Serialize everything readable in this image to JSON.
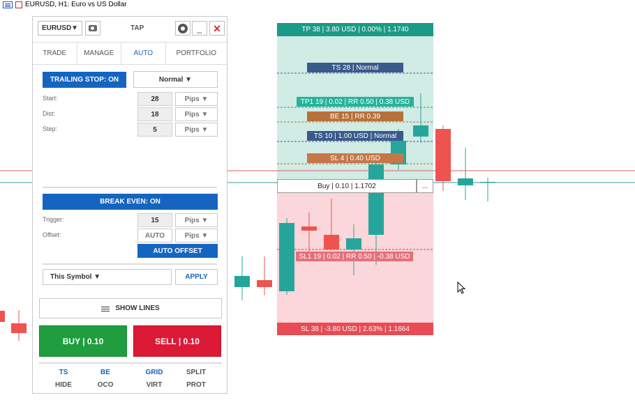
{
  "chart": {
    "title": "EURUSD, H1:  Euro vs US Dollar",
    "colors": {
      "bull": "#26a69a",
      "bear": "#ef5350",
      "tp_zone": "#d1ebe5",
      "sl_zone": "#fbd6da",
      "tp_bar": "#1a9b87",
      "sl_bar": "#e84b54"
    }
  },
  "panel": {
    "symbol_button": "EURUSD▼",
    "title": "TAP",
    "minimize_label": "_",
    "close_label": "✕",
    "tabs": [
      "TRADE",
      "MANAGE",
      "AUTO",
      "PORTFOLIO"
    ],
    "active_tab": "AUTO",
    "trailing_stop": {
      "toggle_label": "TRAILING STOP: ON",
      "mode_label": "Normal ▼",
      "start_label": "Start:",
      "start_value": "28",
      "dist_label": "Dist:",
      "dist_value": "18",
      "step_label": "Step:",
      "step_value": "5",
      "unit_label": "Pips ▼"
    },
    "break_even": {
      "toggle_label": "BREAK EVEN: ON",
      "trigger_label": "Trigger:",
      "trigger_value": "15",
      "offset_label": "Offset:",
      "offset_value": "AUTO",
      "unit_label": "Pips ▼",
      "auto_offset_label": "AUTO OFFSET"
    },
    "scope_label": "This Symbol ▼",
    "apply_label": "APPLY",
    "show_lines_label": "SHOW LINES",
    "buy_label": "BUY | 0.10",
    "sell_label": "SELL | 0.10",
    "footer": {
      "row1": [
        "TS",
        "BE",
        "GRID",
        "SPLIT"
      ],
      "row2": [
        "HIDE",
        "OCO",
        "VIRT",
        "PROT"
      ]
    }
  },
  "trade_overlay": {
    "tp_bar": "TP 38 | 3.80 USD | 0.00% | 1.1740",
    "ts28": "TS 28 | Normal",
    "tp1": "TP1 19 | 0.02 | RR 0.50 | 0.38 USD",
    "be15": "BE 15 | RR 0.39",
    "ts10": "TS 10 | 1.00 USD | Normal",
    "sl4": "SL 4 | 0.40 USD",
    "buy_tag": "Buy | 0.10 | 1.1702",
    "menu_label": "...",
    "sl1": "SL1 19 | 0.02 | RR 0.50 | -0.38 USD",
    "sl_bar": "SL 38 | -3.80 USD | 2.63% | 1.1664"
  }
}
